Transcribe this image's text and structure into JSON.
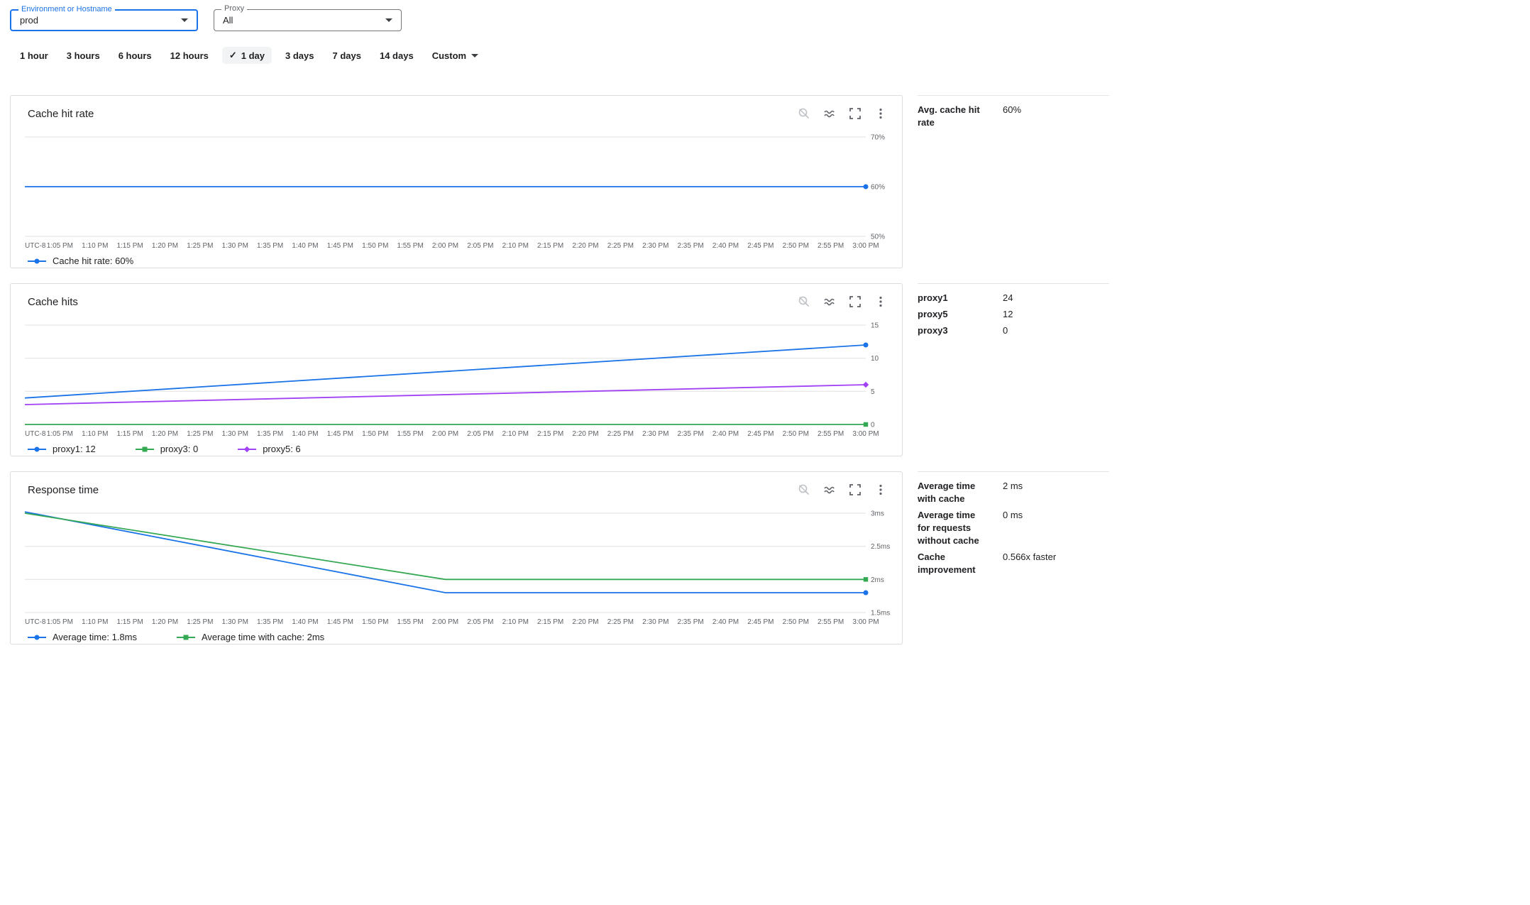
{
  "filters": {
    "environment": {
      "label": "Environment or Hostname",
      "value": "prod"
    },
    "proxy": {
      "label": "Proxy",
      "value": "All"
    }
  },
  "time_ranges": {
    "options": [
      "1 hour",
      "3 hours",
      "6 hours",
      "12 hours",
      "1 day",
      "3 days",
      "7 days",
      "14 days"
    ],
    "selected": "1 day",
    "custom_label": "Custom"
  },
  "stats": [
    {
      "rows": [
        {
          "label": "Avg. cache hit rate",
          "value": "60%"
        }
      ]
    },
    {
      "rows": [
        {
          "label": "proxy1",
          "value": "24"
        },
        {
          "label": "proxy5",
          "value": "12"
        },
        {
          "label": "proxy3",
          "value": "0"
        }
      ]
    },
    {
      "rows": [
        {
          "label": "Average time with cache",
          "value": "2 ms"
        },
        {
          "label": "Average time for requests without cache",
          "value": "0 ms"
        },
        {
          "label": "Cache improvement",
          "value": "0.566x faster"
        }
      ]
    }
  ],
  "colors": {
    "blue": "#1a73e8",
    "green": "#34a853",
    "purple": "#a142f4",
    "grid": "#e0e0e0"
  },
  "chart_data": [
    {
      "type": "line",
      "title": "Cache hit rate",
      "ylim": [
        50,
        70
      ],
      "yticks": [
        {
          "label": "70%",
          "value": 70
        },
        {
          "label": "60%",
          "value": 60
        },
        {
          "label": "50%",
          "value": 50
        }
      ],
      "x_labels": [
        "UTC-8",
        "1:05 PM",
        "1:10 PM",
        "1:15 PM",
        "1:20 PM",
        "1:25 PM",
        "1:30 PM",
        "1:35 PM",
        "1:40 PM",
        "1:45 PM",
        "1:50 PM",
        "1:55 PM",
        "2:00 PM",
        "2:05 PM",
        "2:10 PM",
        "2:15 PM",
        "2:20 PM",
        "2:25 PM",
        "2:30 PM",
        "2:35 PM",
        "2:40 PM",
        "2:45 PM",
        "2:50 PM",
        "2:55 PM",
        "3:00 PM"
      ],
      "series": [
        {
          "name": "Cache hit rate",
          "legend": "Cache hit rate: 60%",
          "color": "#1a73e8",
          "marker": "circle",
          "points": [
            [
              0,
              60
            ],
            [
              1,
              60
            ]
          ]
        }
      ]
    },
    {
      "type": "line",
      "title": "Cache hits",
      "ylim": [
        0,
        15
      ],
      "yticks": [
        {
          "label": "15",
          "value": 15
        },
        {
          "label": "10",
          "value": 10
        },
        {
          "label": "5",
          "value": 5
        },
        {
          "label": "0",
          "value": 0
        }
      ],
      "x_labels": [
        "UTC-8",
        "1:05 PM",
        "1:10 PM",
        "1:15 PM",
        "1:20 PM",
        "1:25 PM",
        "1:30 PM",
        "1:35 PM",
        "1:40 PM",
        "1:45 PM",
        "1:50 PM",
        "1:55 PM",
        "2:00 PM",
        "2:05 PM",
        "2:10 PM",
        "2:15 PM",
        "2:20 PM",
        "2:25 PM",
        "2:30 PM",
        "2:35 PM",
        "2:40 PM",
        "2:45 PM",
        "2:50 PM",
        "2:55 PM",
        "3:00 PM"
      ],
      "series": [
        {
          "name": "proxy1",
          "legend": "proxy1: 12",
          "color": "#1a73e8",
          "marker": "circle",
          "points": [
            [
              0,
              4
            ],
            [
              1,
              12
            ]
          ]
        },
        {
          "name": "proxy3",
          "legend": "proxy3: 0",
          "color": "#34a853",
          "marker": "square",
          "points": [
            [
              0,
              0
            ],
            [
              1,
              0
            ]
          ]
        },
        {
          "name": "proxy5",
          "legend": "proxy5: 6",
          "color": "#a142f4",
          "marker": "diamond",
          "points": [
            [
              0,
              3
            ],
            [
              1,
              6
            ]
          ]
        }
      ]
    },
    {
      "type": "line",
      "title": "Response time",
      "ylim": [
        1.5,
        3
      ],
      "yticks": [
        {
          "label": "3ms",
          "value": 3
        },
        {
          "label": "2.5ms",
          "value": 2.5
        },
        {
          "label": "2ms",
          "value": 2
        },
        {
          "label": "1.5ms",
          "value": 1.5
        }
      ],
      "x_labels": [
        "UTC-8",
        "1:05 PM",
        "1:10 PM",
        "1:15 PM",
        "1:20 PM",
        "1:25 PM",
        "1:30 PM",
        "1:35 PM",
        "1:40 PM",
        "1:45 PM",
        "1:50 PM",
        "1:55 PM",
        "2:00 PM",
        "2:05 PM",
        "2:10 PM",
        "2:15 PM",
        "2:20 PM",
        "2:25 PM",
        "2:30 PM",
        "2:35 PM",
        "2:40 PM",
        "2:45 PM",
        "2:50 PM",
        "2:55 PM",
        "3:00 PM"
      ],
      "series": [
        {
          "name": "Average time",
          "legend": "Average time: 1.8ms",
          "color": "#1a73e8",
          "marker": "circle",
          "points": [
            [
              0,
              3.02
            ],
            [
              0.5,
              1.8
            ],
            [
              1,
              1.8
            ]
          ]
        },
        {
          "name": "Average time with cache",
          "legend": "Average time with cache: 2ms",
          "color": "#34a853",
          "marker": "square",
          "points": [
            [
              0,
              3.0
            ],
            [
              0.5,
              2.0
            ],
            [
              1,
              2.0
            ]
          ]
        }
      ]
    }
  ]
}
